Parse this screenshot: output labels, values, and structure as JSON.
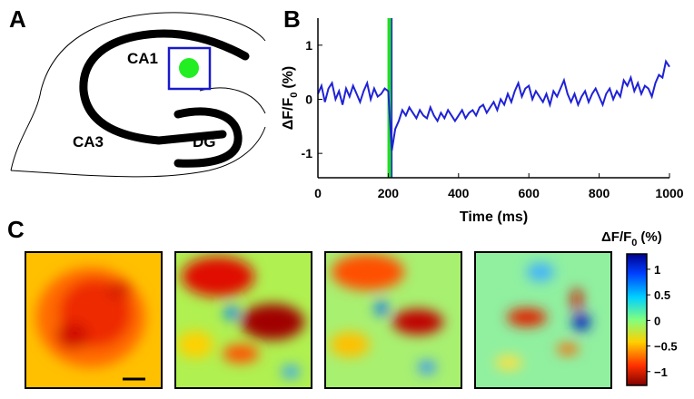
{
  "panel_labels": [
    "A",
    "B",
    "C"
  ],
  "diagram": {
    "labels": [
      "CA1",
      "CA3",
      "DG"
    ]
  },
  "chart_data": {
    "type": "line",
    "color": "#1f22d6",
    "x": [
      0,
      10,
      20,
      30,
      40,
      50,
      60,
      70,
      80,
      90,
      100,
      110,
      120,
      130,
      140,
      150,
      160,
      170,
      180,
      190,
      200,
      210,
      220,
      230,
      240,
      250,
      260,
      270,
      280,
      290,
      300,
      310,
      320,
      330,
      340,
      350,
      360,
      370,
      380,
      390,
      400,
      410,
      420,
      430,
      440,
      450,
      460,
      470,
      480,
      490,
      500,
      510,
      520,
      530,
      540,
      550,
      560,
      570,
      580,
      590,
      600,
      610,
      620,
      630,
      640,
      650,
      660,
      670,
      680,
      690,
      700,
      710,
      720,
      730,
      740,
      750,
      760,
      770,
      780,
      790,
      800,
      810,
      820,
      830,
      840,
      850,
      860,
      870,
      880,
      890,
      900,
      910,
      920,
      930,
      940,
      950,
      960,
      970,
      980,
      990,
      1000
    ],
    "values": [
      0.1,
      0.25,
      -0.05,
      0.2,
      0.3,
      0,
      0.15,
      -0.1,
      0.2,
      0.05,
      0.25,
      0.1,
      -0.05,
      0.15,
      0.3,
      0,
      0.2,
      0.05,
      0.1,
      0.2,
      0.15,
      -0.95,
      -0.55,
      -0.4,
      -0.2,
      -0.3,
      -0.15,
      -0.25,
      -0.35,
      -0.2,
      -0.3,
      -0.35,
      -0.15,
      -0.3,
      -0.4,
      -0.25,
      -0.35,
      -0.2,
      -0.3,
      -0.4,
      -0.3,
      -0.2,
      -0.35,
      -0.25,
      -0.2,
      -0.3,
      -0.15,
      -0.1,
      -0.25,
      -0.15,
      -0.05,
      -0.2,
      0,
      -0.1,
      0.1,
      -0.05,
      0.15,
      0.3,
      0.05,
      0.2,
      0.25,
      0,
      0.15,
      0.05,
      -0.05,
      0.1,
      -0.1,
      0.15,
      0.05,
      0.2,
      0.35,
      0.1,
      -0.05,
      0.1,
      -0.1,
      0.05,
      0.15,
      -0.05,
      0.1,
      0.2,
      0.05,
      -0.1,
      0.1,
      0.2,
      0,
      0.15,
      0.05,
      0.35,
      0.25,
      0.4,
      0.15,
      0.3,
      0.1,
      0.25,
      0.2,
      0.05,
      0.3,
      0.45,
      0.4,
      0.7,
      0.6
    ],
    "markers": [
      {
        "x": 207,
        "color": "#1f22d6"
      },
      {
        "x": 203,
        "color": "#22dd22"
      }
    ],
    "xlim": [
      0,
      1000
    ],
    "xticks": [
      0,
      200,
      400,
      600,
      800,
      1000
    ],
    "ylim": [
      -1.45,
      1.5
    ],
    "yticks": [
      -1,
      0,
      1
    ],
    "xlabel": "Time (ms)",
    "ylabel": {
      "main": "ΔF/F",
      "sub": "0",
      "unit": "(%)"
    }
  },
  "colorbar": {
    "title": {
      "main": "ΔF/F",
      "sub": "0",
      "unit": "(%)"
    },
    "lim": [
      -1.27,
      1.3
    ],
    "ticks": [
      1,
      0.5,
      0,
      {
        "value": -0.5,
        "label": "−0.5"
      },
      {
        "value": -1,
        "label": "−1"
      }
    ]
  }
}
